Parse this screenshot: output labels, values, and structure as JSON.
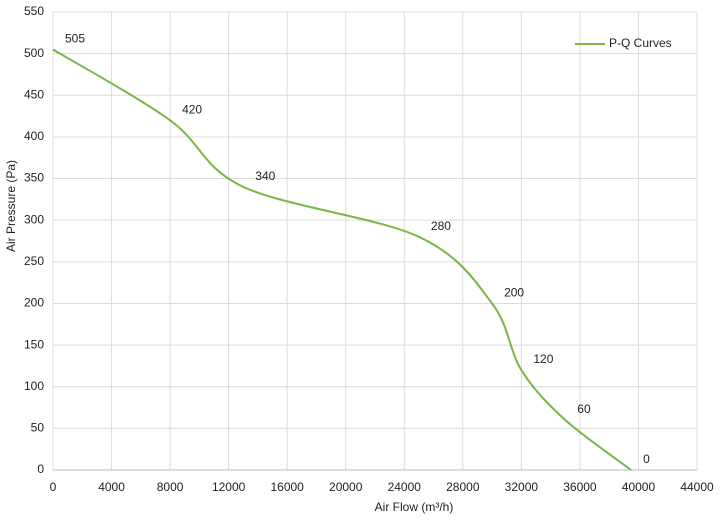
{
  "chart_data": {
    "type": "line",
    "x_label": "Air Flow  (m³/h)",
    "y_label": "Air Pressure  (Pa)",
    "x": [
      0,
      8000,
      13000,
      25000,
      30000,
      32000,
      35000,
      39500
    ],
    "series": [
      {
        "name": "P-Q Curves",
        "color": "#7ab648",
        "values": [
          505,
          420,
          340,
          280,
          200,
          120,
          60,
          0
        ]
      }
    ],
    "xlim": [
      0,
      44000
    ],
    "xticks": [
      0,
      4000,
      8000,
      12000,
      16000,
      20000,
      24000,
      28000,
      32000,
      36000,
      40000,
      44000
    ],
    "ylim": [
      0,
      550
    ],
    "yticks": [
      0,
      50,
      100,
      150,
      200,
      250,
      300,
      350,
      400,
      450,
      500,
      550
    ],
    "grid": true,
    "legend": "top-right"
  }
}
